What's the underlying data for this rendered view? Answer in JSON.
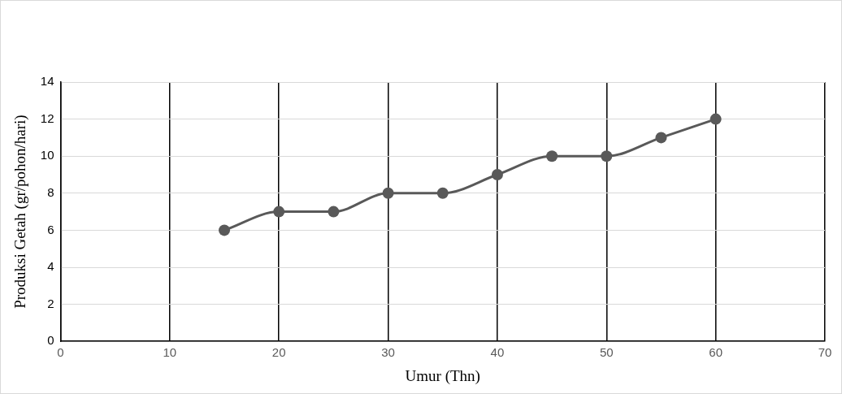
{
  "chart_data": {
    "type": "line",
    "xlabel": "Umur (Thn)",
    "ylabel": "Produksi Getah (gr/pohon/hari)",
    "x": [
      15,
      20,
      25,
      30,
      35,
      40,
      45,
      50,
      55,
      60
    ],
    "series": [
      {
        "color": "#595959",
        "values": [
          6,
          7,
          7,
          8,
          8,
          9,
          10,
          10,
          11,
          12
        ]
      }
    ],
    "xlim": [
      0,
      70
    ],
    "xticks": [
      0,
      10,
      20,
      30,
      40,
      50,
      60,
      70
    ],
    "ylim": [
      0,
      14
    ],
    "yticks": [
      0,
      2,
      4,
      6,
      8,
      10,
      12,
      14
    ],
    "grid": true,
    "legend": false,
    "marker": "circle",
    "line_style": "solid"
  }
}
